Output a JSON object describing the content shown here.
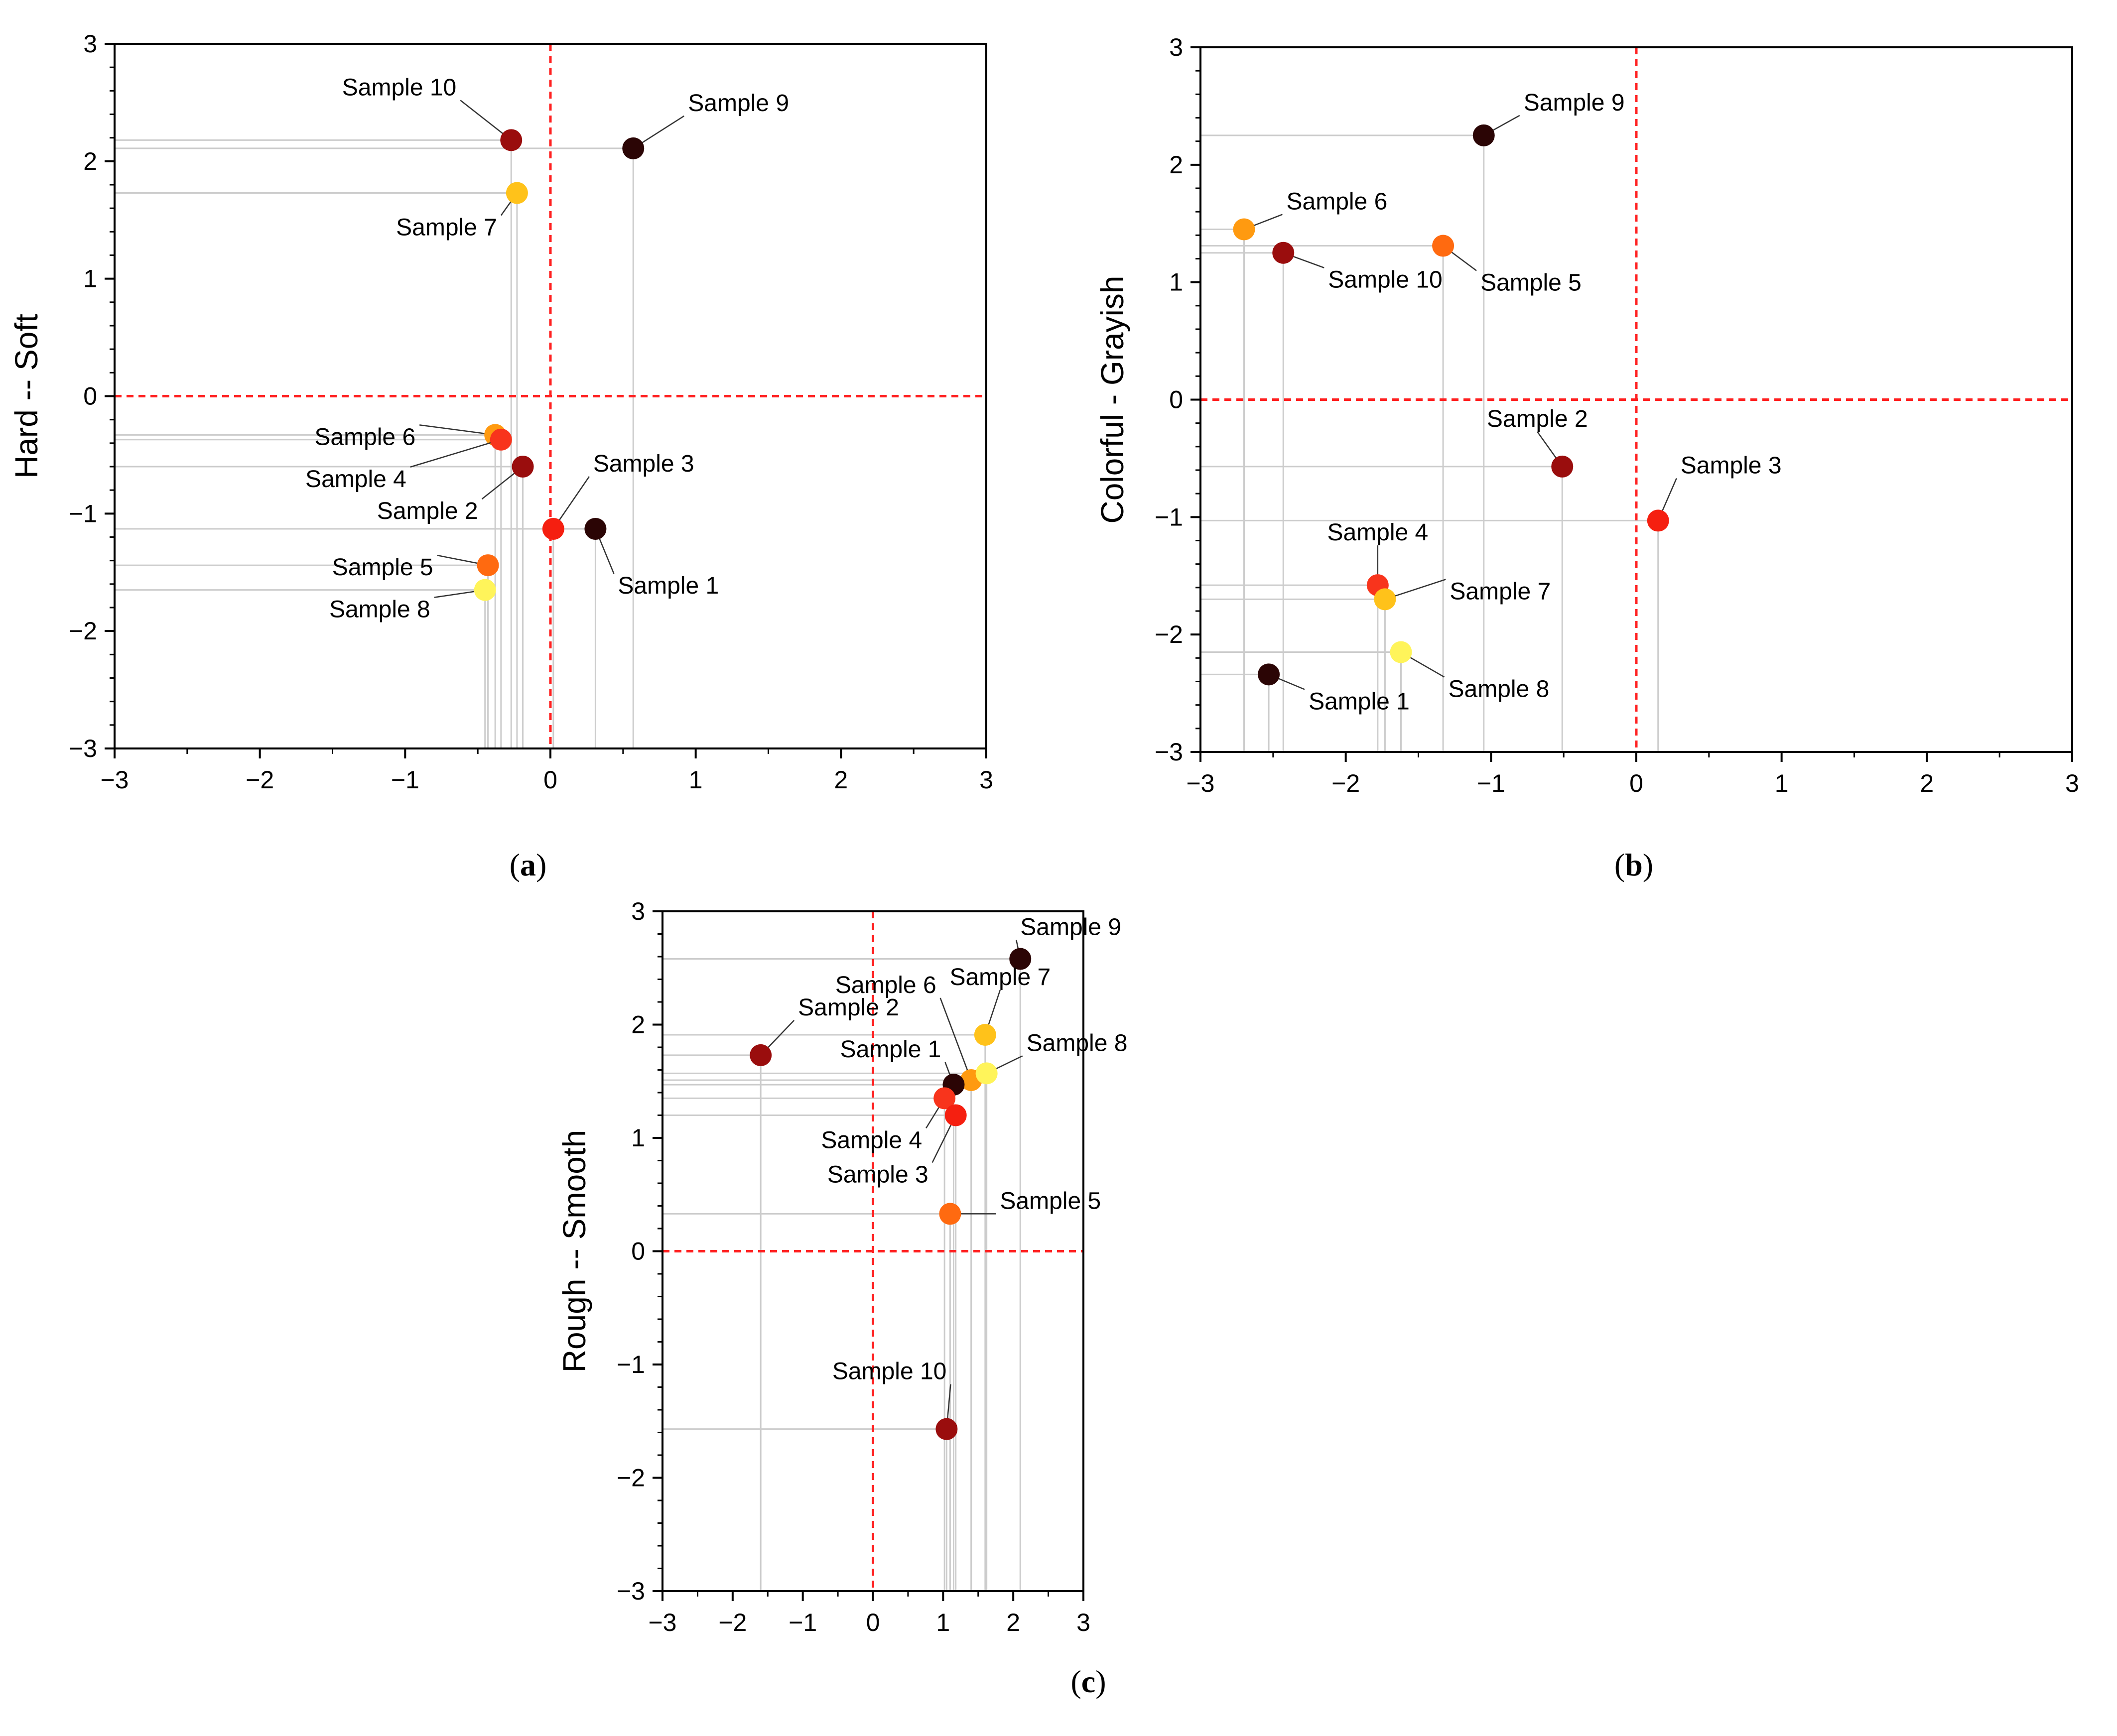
{
  "colors": {
    "sample_1": "#2b0505",
    "sample_2": "#9a0d0d",
    "sample_3": "#f51f10",
    "sample_4": "#f8341c",
    "sample_5": "#ff6a10",
    "sample_6": "#ff9a10",
    "sample_7": "#ffc21a",
    "sample_8": "#fff45a",
    "sample_9": "#2b0505",
    "sample_10": "#9a0d0d",
    "quadrant_line": "#ff2020",
    "drop_line": "#cccccc"
  },
  "chart_data": [
    {
      "id": "a",
      "caption": "a",
      "type": "scatter",
      "xlabel": "",
      "ylabel": "Hard -- Soft",
      "xlim": [
        -3,
        3
      ],
      "ylim": [
        -3,
        3
      ],
      "xticks": [
        "−3",
        "−2",
        "−1",
        "0",
        "1",
        "2",
        "3"
      ],
      "yticks": [
        "−3",
        "−2",
        "−1",
        "0",
        "1",
        "2",
        "3"
      ],
      "points": [
        {
          "label": "Sample 10",
          "x": -0.27,
          "y": 2.18,
          "color": "#9a0d0d"
        },
        {
          "label": "Sample 9",
          "x": 0.57,
          "y": 2.11,
          "color": "#2b0505"
        },
        {
          "label": "Sample 7",
          "x": -0.23,
          "y": 1.73,
          "color": "#ffc21a"
        },
        {
          "label": "Sample 6",
          "x": -0.38,
          "y": -0.33,
          "color": "#ff9a10"
        },
        {
          "label": "Sample 4",
          "x": -0.34,
          "y": -0.37,
          "color": "#f8341c"
        },
        {
          "label": "Sample 2",
          "x": -0.19,
          "y": -0.6,
          "color": "#9a0d0d"
        },
        {
          "label": "Sample 3",
          "x": 0.02,
          "y": -1.13,
          "color": "#f51f10"
        },
        {
          "label": "Sample 1",
          "x": 0.31,
          "y": -1.13,
          "color": "#2b0505"
        },
        {
          "label": "Sample 5",
          "x": -0.43,
          "y": -1.44,
          "color": "#ff6a10"
        },
        {
          "label": "Sample 8",
          "x": -0.45,
          "y": -1.65,
          "color": "#fff45a"
        }
      ]
    },
    {
      "id": "b",
      "caption": "b",
      "type": "scatter",
      "xlabel": "",
      "ylabel": "Colorful - Grayish",
      "xlim": [
        -3,
        3
      ],
      "ylim": [
        -3,
        3
      ],
      "xticks": [
        "−3",
        "−2",
        "−1",
        "0",
        "1",
        "2",
        "3"
      ],
      "yticks": [
        "−3",
        "−2",
        "−1",
        "0",
        "1",
        "2",
        "3"
      ],
      "points": [
        {
          "label": "Sample 9",
          "x": -1.05,
          "y": 2.25,
          "color": "#2b0505"
        },
        {
          "label": "Sample 6",
          "x": -2.7,
          "y": 1.45,
          "color": "#ff9a10"
        },
        {
          "label": "Sample 10",
          "x": -2.43,
          "y": 1.25,
          "color": "#9a0d0d"
        },
        {
          "label": "Sample 5",
          "x": -1.33,
          "y": 1.31,
          "color": "#ff6a10"
        },
        {
          "label": "Sample 2",
          "x": -0.51,
          "y": -0.57,
          "color": "#9a0d0d"
        },
        {
          "label": "Sample 3",
          "x": 0.15,
          "y": -1.03,
          "color": "#f51f10"
        },
        {
          "label": "Sample 4",
          "x": -1.78,
          "y": -1.58,
          "color": "#f8341c"
        },
        {
          "label": "Sample 7",
          "x": -1.73,
          "y": -1.7,
          "color": "#ffc21a"
        },
        {
          "label": "Sample 8",
          "x": -1.62,
          "y": -2.15,
          "color": "#fff45a"
        },
        {
          "label": "Sample 1",
          "x": -2.53,
          "y": -2.34,
          "color": "#2b0505"
        }
      ]
    },
    {
      "id": "c",
      "caption": "c",
      "type": "scatter",
      "xlabel": "",
      "ylabel": "Rough -- Smooth",
      "xlim": [
        -3,
        3
      ],
      "ylim": [
        -3,
        3
      ],
      "xticks": [
        "−3",
        "−2",
        "−1",
        "0",
        "1",
        "2",
        "3"
      ],
      "yticks": [
        "−3",
        "−2",
        "−1",
        "0",
        "1",
        "2",
        "3"
      ],
      "points": [
        {
          "label": "Sample 9",
          "x": 2.1,
          "y": 2.58,
          "color": "#2b0505"
        },
        {
          "label": "Sample 2",
          "x": -1.6,
          "y": 1.73,
          "color": "#9a0d0d"
        },
        {
          "label": "Sample 7",
          "x": 1.6,
          "y": 1.91,
          "color": "#ffc21a"
        },
        {
          "label": "Sample 6",
          "x": 1.4,
          "y": 1.51,
          "color": "#ff9a10"
        },
        {
          "label": "Sample 8",
          "x": 1.62,
          "y": 1.57,
          "color": "#fff45a"
        },
        {
          "label": "Sample 1",
          "x": 1.15,
          "y": 1.47,
          "color": "#2b0505"
        },
        {
          "label": "Sample 4",
          "x": 1.02,
          "y": 1.35,
          "color": "#f8341c"
        },
        {
          "label": "Sample 3",
          "x": 1.18,
          "y": 1.2,
          "color": "#f51f10"
        },
        {
          "label": "Sample 5",
          "x": 1.1,
          "y": 0.33,
          "color": "#ff6a10"
        },
        {
          "label": "Sample 10",
          "x": 1.05,
          "y": -1.57,
          "color": "#9a0d0d"
        }
      ]
    }
  ]
}
